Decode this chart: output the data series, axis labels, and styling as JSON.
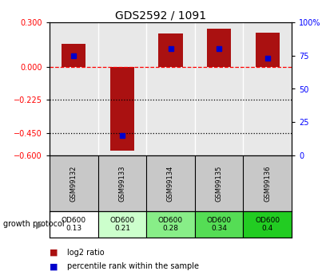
{
  "title": "GDS2592 / 1091",
  "samples": [
    "GSM99132",
    "GSM99133",
    "GSM99134",
    "GSM99135",
    "GSM99136"
  ],
  "log2_ratio": [
    0.155,
    -0.57,
    0.225,
    0.255,
    0.23
  ],
  "percentile_rank": [
    75,
    15,
    80,
    80,
    73
  ],
  "growth_protocol_labels": [
    "OD600\n0.13",
    "OD600\n0.21",
    "OD600\n0.28",
    "OD600\n0.34",
    "OD600\n0.4"
  ],
  "growth_protocol_colors": [
    "#ffffff",
    "#ccffcc",
    "#88ee88",
    "#55dd55",
    "#22cc22"
  ],
  "bar_color": "#aa1111",
  "dot_color": "#0000cc",
  "left_ylim": [
    -0.6,
    0.3
  ],
  "right_ylim": [
    0,
    100
  ],
  "left_yticks": [
    0.3,
    0.0,
    -0.225,
    -0.45,
    -0.6
  ],
  "right_yticks": [
    100,
    75,
    50,
    25,
    0
  ],
  "dotted_hlines": [
    -0.225,
    -0.45
  ],
  "bar_width": 0.5,
  "sample_bg": "#c8c8c8",
  "plot_bg": "#e8e8e8"
}
